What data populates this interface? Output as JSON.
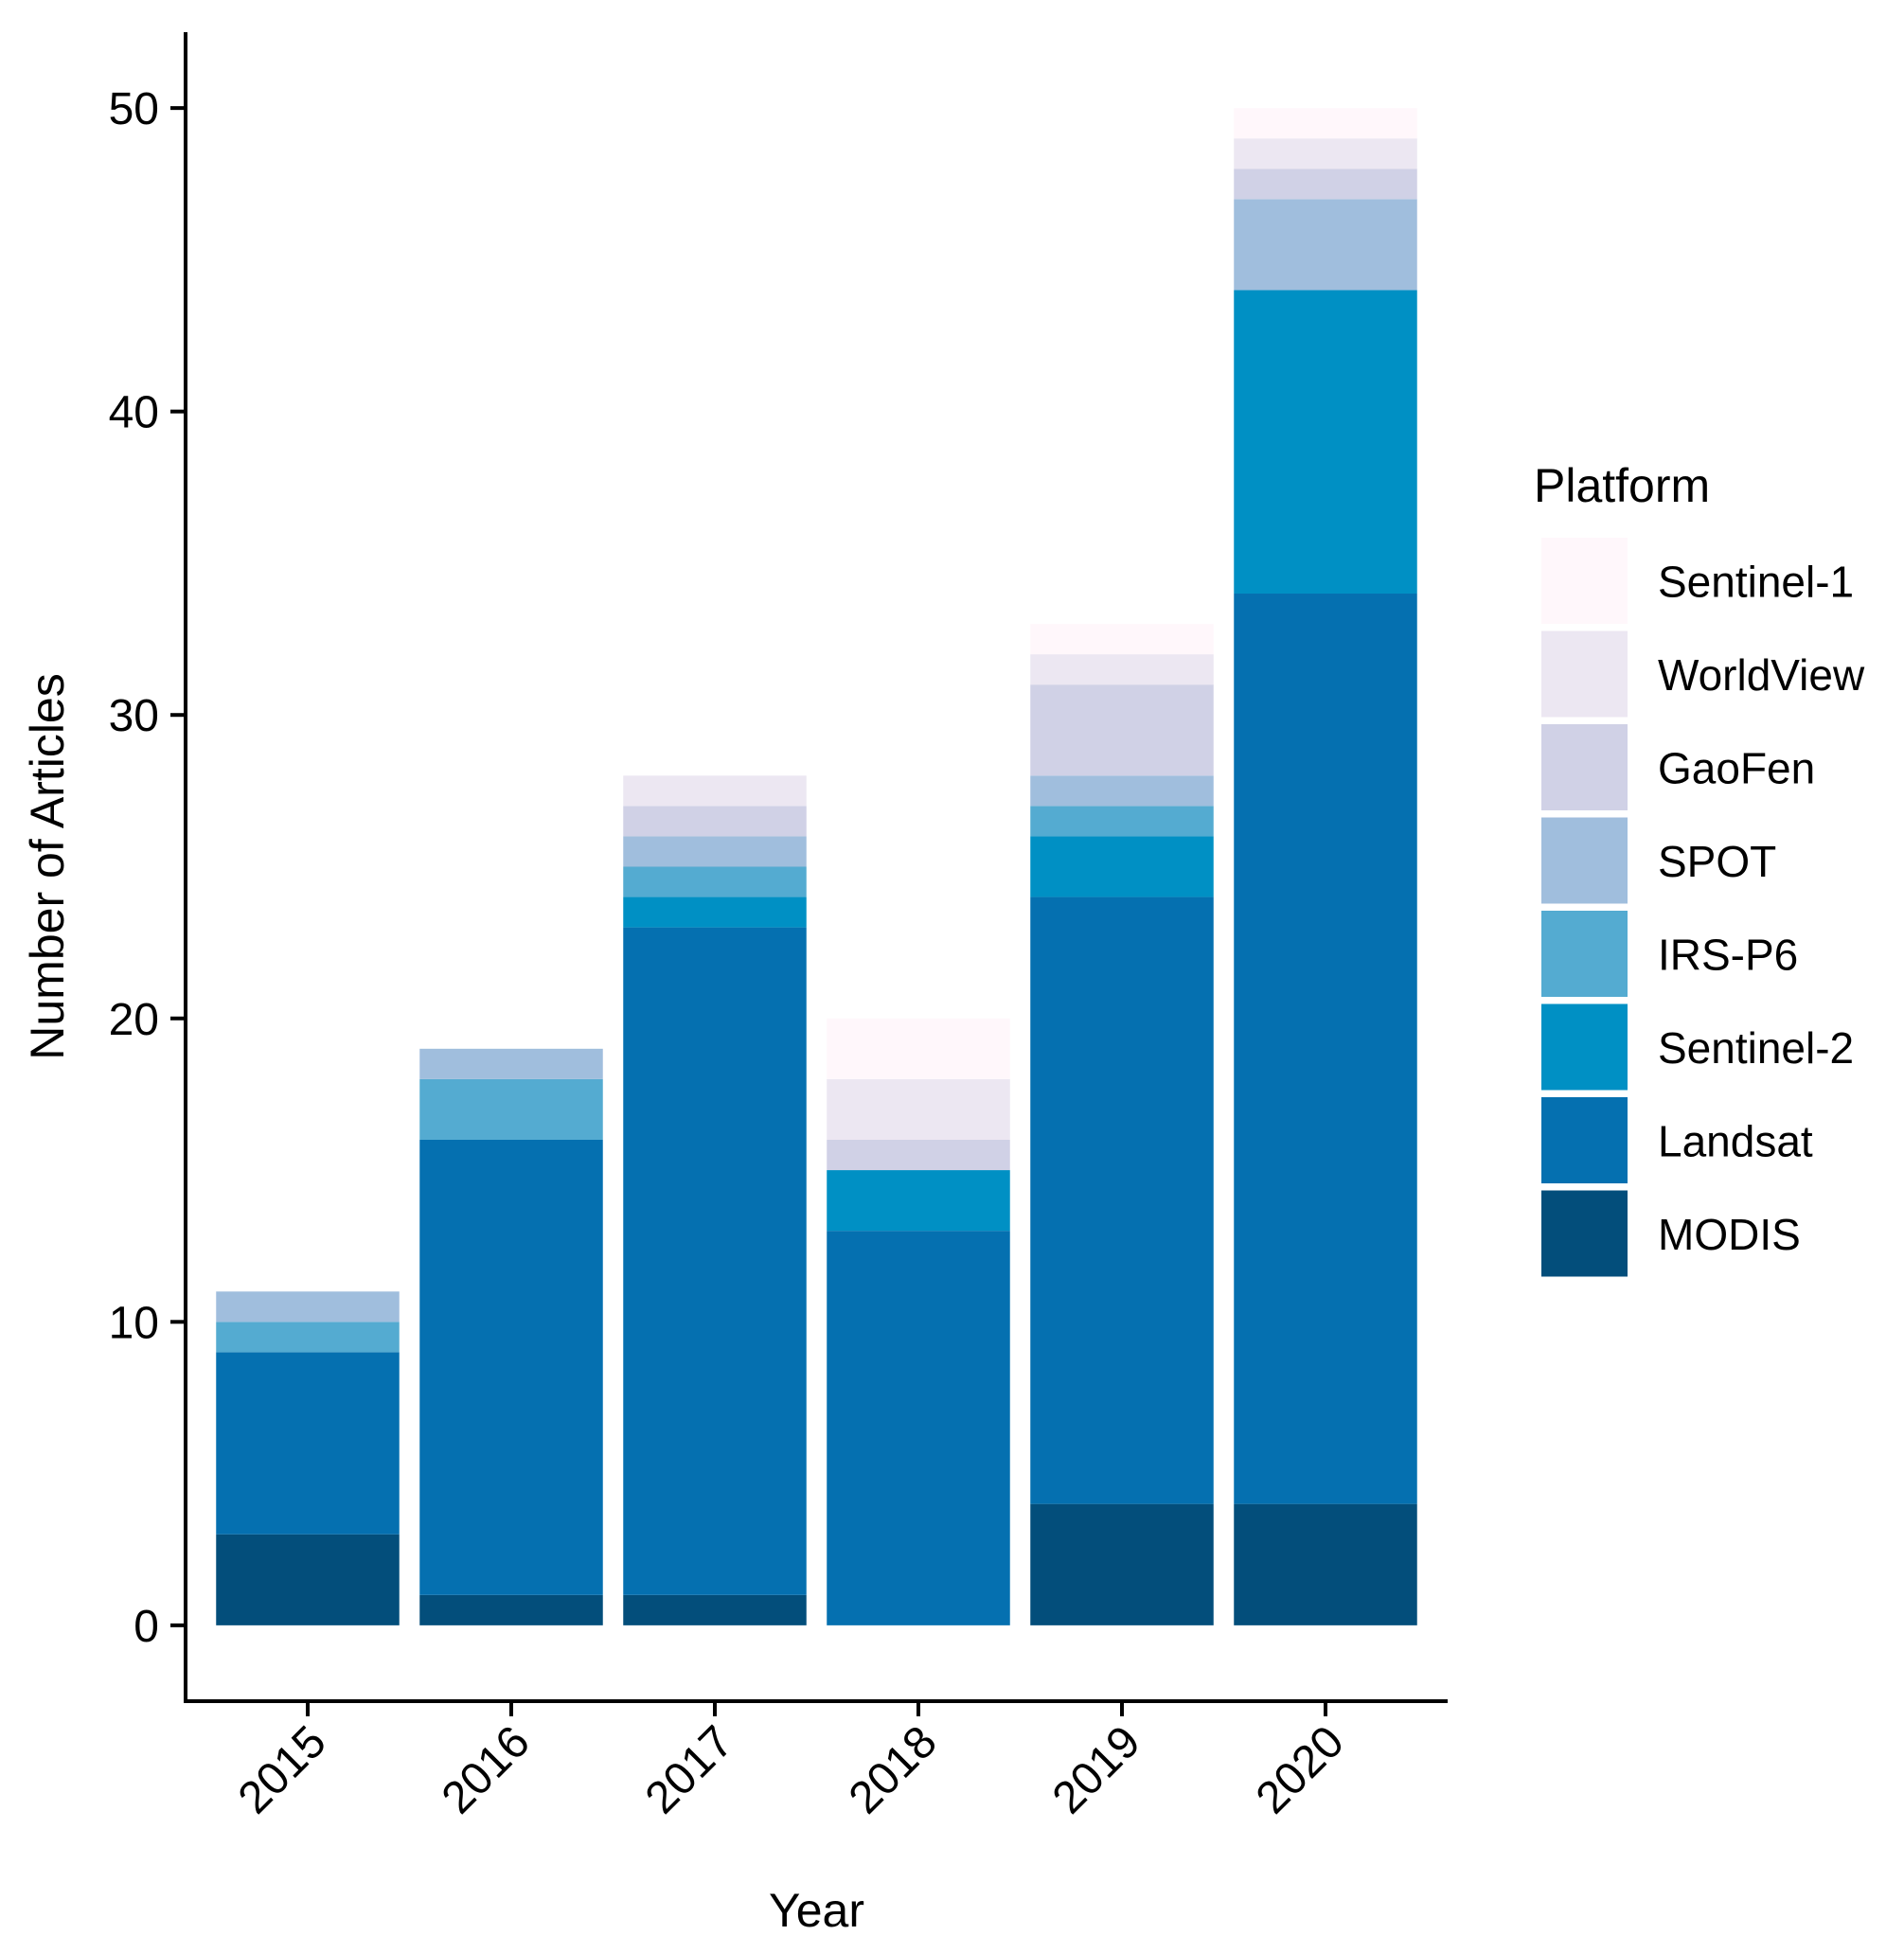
{
  "chart_data": {
    "type": "bar",
    "stacked": true,
    "xlabel": "Year",
    "ylabel": "Number of Articles",
    "ylim": [
      -2.5,
      52.5
    ],
    "yticks": [
      0,
      10,
      20,
      30,
      40,
      50
    ],
    "categories": [
      "2015",
      "2016",
      "2017",
      "2018",
      "2019",
      "2020"
    ],
    "legend": {
      "title": "Platform",
      "position": "right"
    },
    "grid": false,
    "series": [
      {
        "name": "MODIS",
        "color": "#034e7b",
        "values": [
          3,
          1,
          1,
          0,
          4,
          4
        ]
      },
      {
        "name": "Landsat",
        "color": "#0570b0",
        "values": [
          6,
          15,
          22,
          13,
          20,
          30
        ]
      },
      {
        "name": "Sentinel-2",
        "color": "#0090c4",
        "values": [
          0,
          0,
          1,
          2,
          2,
          10
        ]
      },
      {
        "name": "IRS-P6",
        "color": "#54abd1",
        "values": [
          1,
          2,
          1,
          0,
          1,
          0
        ]
      },
      {
        "name": "SPOT",
        "color": "#a0bedd",
        "values": [
          1,
          1,
          1,
          0,
          1,
          3
        ]
      },
      {
        "name": "GaoFen",
        "color": "#d0d1e6",
        "values": [
          0,
          0,
          1,
          1,
          3,
          1
        ]
      },
      {
        "name": "WorldView",
        "color": "#ece7f2",
        "values": [
          0,
          0,
          1,
          2,
          1,
          1
        ]
      },
      {
        "name": "Sentinel-1",
        "color": "#fff7fb",
        "values": [
          0,
          0,
          0,
          2,
          1,
          1
        ]
      }
    ]
  }
}
